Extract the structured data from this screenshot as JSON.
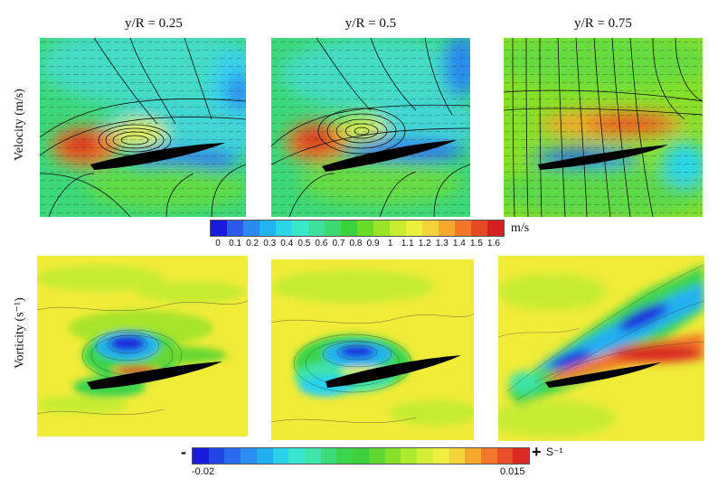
{
  "columns": [
    {
      "title": "y/R = 0.25"
    },
    {
      "title": "y/R = 0.5"
    },
    {
      "title": "y/R = 0.75"
    }
  ],
  "rows": {
    "velocity_label": "Velocity (m/s)",
    "vorticity_label": "Vorticity (s⁻¹)"
  },
  "velocity_colorbar": {
    "ticks": [
      "0",
      "0.1",
      "0.2",
      "0.3",
      "0.4",
      "0.5",
      "0.6",
      "0.7",
      "0.8",
      "0.9",
      "1",
      "1.1",
      "1.2",
      "1.3",
      "1.4",
      "1.5",
      "1.6"
    ],
    "unit": "m/s",
    "colors": [
      "#1a1adc",
      "#2a5ae6",
      "#2a8af0",
      "#22b4f0",
      "#2ad6e8",
      "#38e8c8",
      "#3ee0a0",
      "#3cd870",
      "#3cd23c",
      "#66dc28",
      "#98e428",
      "#c6ec30",
      "#eaf03c",
      "#f4d23a",
      "#f4a82c",
      "#f07828",
      "#e44a24",
      "#d42020"
    ]
  },
  "vorticity_colorbar": {
    "min_label": "-0.02",
    "max_label": "0.015",
    "minus_symbol": "-",
    "plus_symbol": "+",
    "unit": "S⁻¹",
    "colors": [
      "#1a1adc",
      "#2046e4",
      "#2a6aec",
      "#2a8ef0",
      "#22b0f0",
      "#2ad2ea",
      "#38e6d0",
      "#3ee4a8",
      "#3cdc7a",
      "#3cd44c",
      "#3ed03a",
      "#5ed830",
      "#86e02a",
      "#acea2e",
      "#d4ee38",
      "#eef03e",
      "#f4d23a",
      "#f4a82c",
      "#f07828",
      "#e8502a",
      "#d82a22"
    ]
  }
}
